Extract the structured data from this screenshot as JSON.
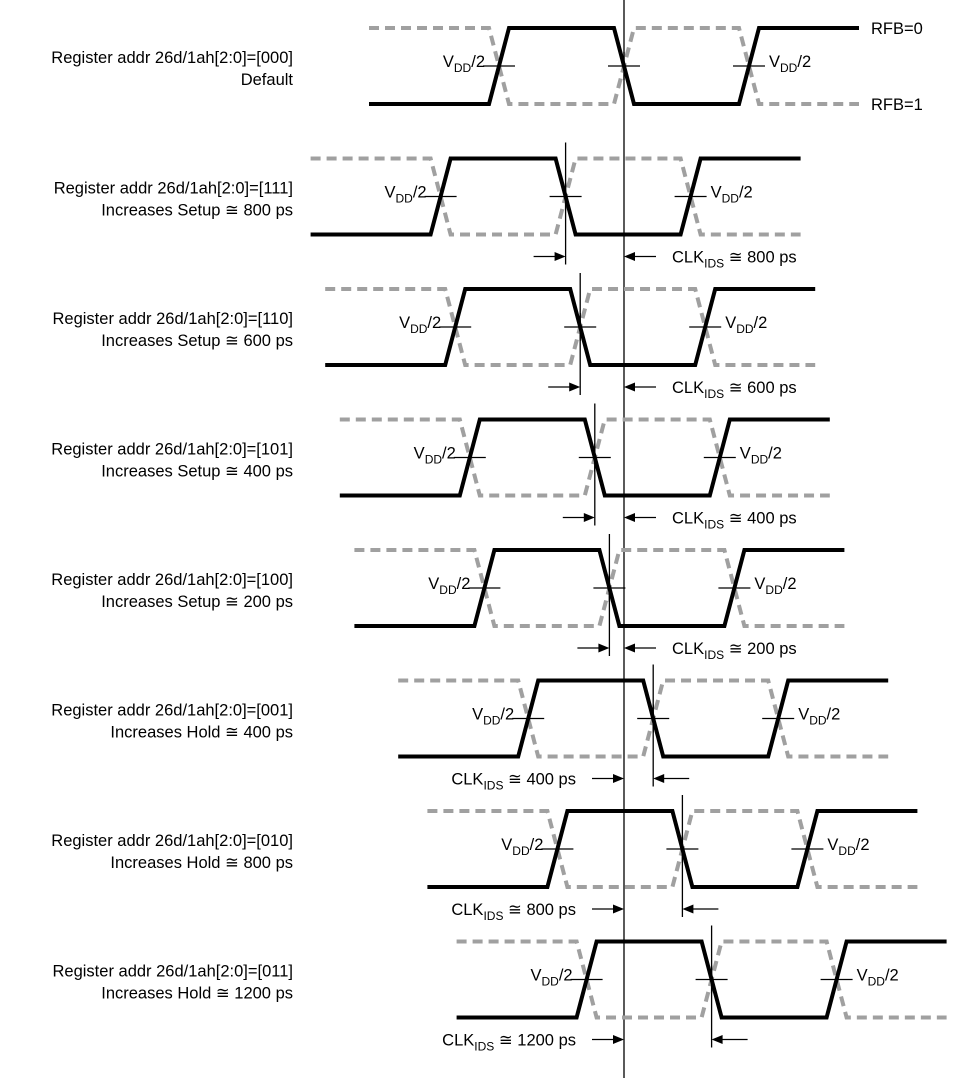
{
  "vdd_label": {
    "main": "V",
    "sub": "DD",
    "tail": "/2"
  },
  "rfb0_label": "RFB=0",
  "rfb1_label": "RFB=1",
  "clk_label": {
    "main": "CLK",
    "sub": "IDS",
    "approx": "≅"
  },
  "rows": [
    {
      "line1": "Register addr 26d/1ah[2:0]=[000]",
      "line2": "Default",
      "offset_ps": 0
    },
    {
      "line1": "Register addr 26d/1ah[2:0]=[111]",
      "line2": "Increases Setup ≅ 800 ps",
      "offset_ps": -800,
      "delta": "800 ps"
    },
    {
      "line1": "Register addr 26d/1ah[2:0]=[110]",
      "line2": "Increases Setup ≅ 600 ps",
      "offset_ps": -600,
      "delta": "600 ps"
    },
    {
      "line1": "Register addr 26d/1ah[2:0]=[101]",
      "line2": "Increases Setup ≅ 400 ps",
      "offset_ps": -400,
      "delta": "400 ps"
    },
    {
      "line1": "Register addr 26d/1ah[2:0]=[100]",
      "line2": "Increases Setup ≅ 200 ps",
      "offset_ps": -200,
      "delta": "200 ps"
    },
    {
      "line1": "Register addr 26d/1ah[2:0]=[001]",
      "line2": "Increases Hold ≅ 400 ps",
      "offset_ps": 400,
      "delta": "400 ps"
    },
    {
      "line1": "Register addr 26d/1ah[2:0]=[010]",
      "line2": "Increases Hold ≅ 800 ps",
      "offset_ps": 800,
      "delta": "800 ps"
    },
    {
      "line1": "Register addr 26d/1ah[2:0]=[011]",
      "line2": "Increases Hold ≅ 1200 ps",
      "offset_ps": 1200,
      "delta": "1200 ps"
    }
  ]
}
